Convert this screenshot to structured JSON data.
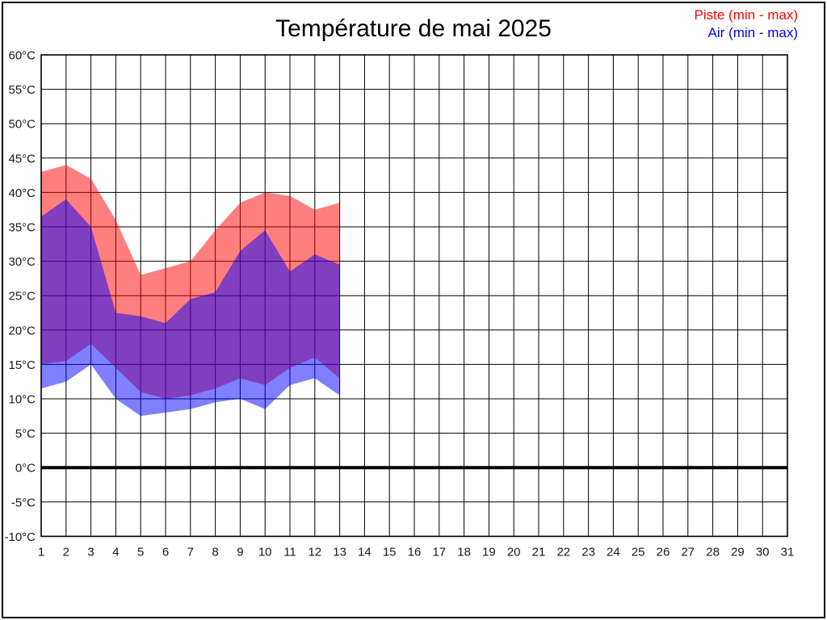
{
  "title": "Température de mai 2025",
  "legend": {
    "position": "top-right",
    "items": [
      {
        "label": "Piste (min - max)",
        "color": "#ff0000"
      },
      {
        "label": "Air (min - max)",
        "color": "#0000ff"
      }
    ]
  },
  "chart_data": {
    "type": "area",
    "title": "Température de mai 2025",
    "x_ticks": [
      1,
      2,
      3,
      4,
      5,
      6,
      7,
      8,
      9,
      10,
      11,
      12,
      13,
      14,
      15,
      16,
      17,
      18,
      19,
      20,
      21,
      22,
      23,
      24,
      25,
      26,
      27,
      28,
      29,
      30,
      31
    ],
    "y_tick_labels": [
      "60°C",
      "55°C",
      "50°C",
      "45°C",
      "40°C",
      "35°C",
      "30°C",
      "25°C",
      "20°C",
      "15°C",
      "10°C",
      "5°C",
      "0°C",
      "-5°C",
      "-10°C"
    ],
    "y_tick_values": [
      60,
      55,
      50,
      45,
      40,
      35,
      30,
      25,
      20,
      15,
      10,
      5,
      0,
      -5,
      -10
    ],
    "ylim": [
      -10,
      60
    ],
    "xlim": [
      1,
      31
    ],
    "grid": true,
    "zero_line_bold": true,
    "background": "#ffffff",
    "grid_color": "#000000",
    "series": [
      {
        "name": "Piste (min - max)",
        "legend_color": "#ff0000",
        "fill_color": "rgba(255,0,0,0.5)",
        "days": [
          1,
          2,
          3,
          4,
          5,
          6,
          7,
          8,
          9,
          10,
          11,
          12,
          13
        ],
        "max": [
          43,
          44,
          42,
          36,
          28,
          29,
          30,
          34.5,
          38.5,
          40,
          39.5,
          37.5,
          38.5
        ],
        "min": [
          15,
          15.5,
          18,
          14.5,
          11,
          10,
          10.5,
          11.5,
          13,
          12,
          14.5,
          16,
          13
        ]
      },
      {
        "name": "Air (min - max)",
        "legend_color": "#0000ff",
        "fill_color": "rgba(0,0,255,0.5)",
        "days": [
          1,
          2,
          3,
          4,
          5,
          6,
          7,
          8,
          9,
          10,
          11,
          12,
          13
        ],
        "max": [
          36.5,
          39,
          35,
          22.5,
          22,
          21,
          24.5,
          25.5,
          31.5,
          34.5,
          28.5,
          31,
          29.5
        ],
        "min": [
          11.5,
          12.5,
          15,
          10,
          7.5,
          8,
          8.5,
          9.5,
          10,
          8.5,
          12,
          13,
          10.5
        ]
      }
    ]
  }
}
